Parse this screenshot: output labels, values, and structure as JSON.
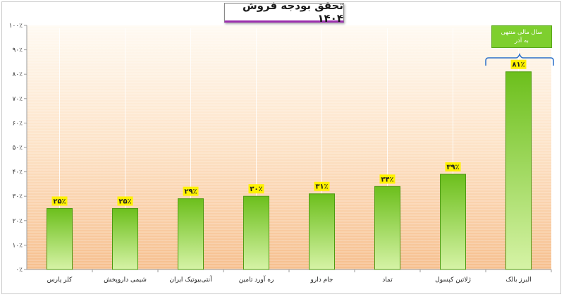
{
  "chart_data": {
    "type": "bar",
    "title": "تحقق بودجه فروش ۱۴۰۴",
    "categories": [
      "کلر پارس",
      "شیمی داروپخش",
      "آنتی‌بیوتیک ایران",
      "ره آورد تامین",
      "جام دارو",
      "تماد",
      "ژلاتین کپسول",
      "البرز بالک"
    ],
    "values": [
      25,
      25,
      29,
      30,
      31,
      34,
      39,
      81
    ],
    "value_labels": [
      "۲۵٪",
      "۲۵٪",
      "۲۹٪",
      "۳۰٪",
      "۳۱٪",
      "۳۴٪",
      "۳۹٪",
      "۸۱٪"
    ],
    "ylim": [
      0,
      100
    ],
    "y_ticks": [
      0,
      10,
      20,
      30,
      40,
      50,
      60,
      70,
      80,
      90,
      100
    ],
    "y_tick_labels": [
      "۰٪",
      "۱۰٪",
      "۲۰٪",
      "۳۰٪",
      "۴۰٪",
      "۵۰٪",
      "۶۰٪",
      "۷۰٪",
      "۸۰٪",
      "۹۰٪",
      "۱۰۰٪"
    ],
    "xlabel": "",
    "ylabel": "",
    "grid": false,
    "legend": "none",
    "annotation": "سال مالی منتهی\nبه آذر",
    "colors": {
      "bar_top": "#6cbf1c",
      "bar_bottom": "#d6f3a6",
      "bar_stroke": "#4e9a12",
      "label_bg": "#fff200",
      "plot_top": "#fffaf2",
      "plot_bottom": "#f6bf8e",
      "annotation_bg": "#7ecf2e"
    }
  }
}
